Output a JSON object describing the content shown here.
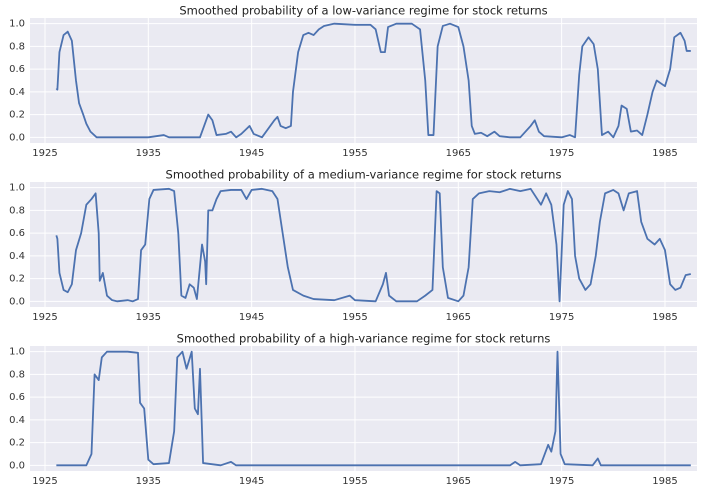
{
  "chart_data": [
    {
      "type": "line",
      "title": "Smoothed probability of a low-variance regime for stock returns",
      "color": "#4c72b0",
      "grid": true,
      "xlim": [
        1923.55,
        1988.1
      ],
      "xticks": [
        1925,
        1935,
        1945,
        1955,
        1965,
        1975,
        1985
      ],
      "ylim": [
        -0.05,
        1.05
      ],
      "yticks": [
        {
          "value": 0,
          "label": "0.0"
        },
        {
          "value": 0.2,
          "label": "0.2"
        },
        {
          "value": 0.4,
          "label": "0.4"
        },
        {
          "value": 0.6,
          "label": "0.6"
        },
        {
          "value": 0.8,
          "label": "0.8"
        },
        {
          "value": 1,
          "label": "1.0"
        }
      ],
      "x": [
        1926.1,
        1926.2,
        1926.4,
        1926.8,
        1927.2,
        1927.6,
        1928.0,
        1928.3,
        1928.7,
        1929.0,
        1929.4,
        1930,
        1935,
        1936.5,
        1937,
        1940,
        1940.8,
        1941.2,
        1941.6,
        1942.5,
        1943,
        1943.5,
        1944,
        1944.8,
        1945.2,
        1946,
        1946.8,
        1947.2,
        1947.5,
        1947.8,
        1948.3,
        1948.8,
        1949.0,
        1949.5,
        1950,
        1950.5,
        1951,
        1951.5,
        1952,
        1953,
        1955,
        1956.5,
        1957,
        1957.5,
        1957.9,
        1958.2,
        1959,
        1960.5,
        1961.3,
        1961.8,
        1962.1,
        1962.6,
        1963,
        1963.5,
        1964.2,
        1965,
        1965.5,
        1966.0,
        1966.3,
        1966.6,
        1967.2,
        1967.8,
        1968.5,
        1969,
        1970,
        1971,
        1972,
        1972.4,
        1972.8,
        1973.3,
        1975,
        1975.8,
        1976.3,
        1976.7,
        1977,
        1977.6,
        1978.1,
        1978.5,
        1978.9,
        1979.5,
        1980,
        1980.5,
        1980.8,
        1981.3,
        1981.7,
        1982.3,
        1982.8,
        1983.3,
        1983.8,
        1984.2,
        1985,
        1985.5,
        1985.9,
        1986.5,
        1986.9,
        1987.1,
        1987.5
      ],
      "values": [
        0.43,
        0.42,
        0.75,
        0.9,
        0.93,
        0.85,
        0.5,
        0.3,
        0.2,
        0.12,
        0.05,
        0.0,
        0.0,
        0.02,
        0.0,
        0.0,
        0.2,
        0.15,
        0.02,
        0.03,
        0.05,
        0.0,
        0.03,
        0.1,
        0.03,
        0.0,
        0.1,
        0.15,
        0.18,
        0.1,
        0.08,
        0.1,
        0.4,
        0.75,
        0.9,
        0.92,
        0.9,
        0.95,
        0.98,
        1.0,
        0.99,
        0.99,
        0.95,
        0.75,
        0.75,
        0.97,
        1.0,
        1.0,
        0.95,
        0.5,
        0.02,
        0.02,
        0.8,
        0.98,
        1.0,
        0.97,
        0.8,
        0.5,
        0.1,
        0.03,
        0.04,
        0.01,
        0.05,
        0.01,
        0.0,
        0.0,
        0.1,
        0.15,
        0.05,
        0.01,
        0.0,
        0.02,
        0.0,
        0.55,
        0.8,
        0.88,
        0.82,
        0.6,
        0.02,
        0.05,
        0.0,
        0.1,
        0.28,
        0.25,
        0.05,
        0.06,
        0.02,
        0.2,
        0.4,
        0.5,
        0.45,
        0.6,
        0.88,
        0.92,
        0.85,
        0.76,
        0.76
      ]
    },
    {
      "type": "line",
      "title": "Smoothed probability of a medium-variance regime for stock returns",
      "color": "#4c72b0",
      "grid": true,
      "xlim": [
        1923.55,
        1988.1
      ],
      "xticks": [
        1925,
        1935,
        1945,
        1955,
        1965,
        1975,
        1985
      ],
      "ylim": [
        -0.05,
        1.05
      ],
      "yticks": [
        {
          "value": 0,
          "label": "0.0"
        },
        {
          "value": 0.2,
          "label": "0.2"
        },
        {
          "value": 0.4,
          "label": "0.4"
        },
        {
          "value": 0.6,
          "label": "0.6"
        },
        {
          "value": 0.8,
          "label": "0.8"
        },
        {
          "value": 1,
          "label": "1.0"
        }
      ],
      "x": [
        1926.1,
        1926.2,
        1926.4,
        1926.8,
        1927.2,
        1927.6,
        1928,
        1928.5,
        1929,
        1929.5,
        1929.9,
        1930.2,
        1930.3,
        1930.6,
        1931,
        1931.5,
        1932,
        1933,
        1933.5,
        1934,
        1934.3,
        1934.7,
        1935.1,
        1935.5,
        1937,
        1937.5,
        1937.9,
        1938.2,
        1938.6,
        1939,
        1939.4,
        1939.7,
        1940.2,
        1940.5,
        1940.6,
        1940.8,
        1941.2,
        1941.6,
        1942,
        1943,
        1944,
        1944.5,
        1945,
        1946,
        1947,
        1947.5,
        1948,
        1948.5,
        1949,
        1950,
        1951,
        1953,
        1954.5,
        1955,
        1957,
        1957.7,
        1958,
        1958.3,
        1959,
        1961,
        1961.8,
        1962.5,
        1962.9,
        1963.2,
        1963.5,
        1964,
        1965,
        1965.5,
        1966,
        1966.4,
        1967,
        1968,
        1969,
        1970,
        1971,
        1972,
        1973,
        1973.5,
        1974,
        1974.5,
        1974.8,
        1975.2,
        1975.6,
        1976,
        1976.3,
        1976.7,
        1977.3,
        1977.8,
        1978.3,
        1978.7,
        1979.2,
        1980,
        1980.5,
        1981,
        1981.5,
        1982.3,
        1982.7,
        1983.3,
        1984,
        1984.5,
        1985,
        1985.5,
        1986,
        1986.5,
        1987,
        1987.5
      ],
      "values": [
        0.58,
        0.55,
        0.25,
        0.1,
        0.08,
        0.15,
        0.45,
        0.6,
        0.85,
        0.9,
        0.95,
        0.6,
        0.18,
        0.25,
        0.05,
        0.01,
        0.0,
        0.01,
        0.0,
        0.02,
        0.45,
        0.5,
        0.9,
        0.98,
        0.99,
        0.97,
        0.6,
        0.05,
        0.03,
        0.15,
        0.12,
        0.02,
        0.5,
        0.35,
        0.15,
        0.8,
        0.8,
        0.9,
        0.97,
        0.98,
        0.98,
        0.9,
        0.98,
        0.99,
        0.97,
        0.9,
        0.6,
        0.3,
        0.1,
        0.05,
        0.02,
        0.01,
        0.05,
        0.01,
        0.0,
        0.15,
        0.25,
        0.05,
        0.0,
        0.0,
        0.05,
        0.1,
        0.97,
        0.95,
        0.3,
        0.03,
        0.0,
        0.05,
        0.3,
        0.9,
        0.95,
        0.97,
        0.96,
        0.99,
        0.97,
        0.99,
        0.85,
        0.95,
        0.85,
        0.5,
        0.0,
        0.85,
        0.97,
        0.9,
        0.4,
        0.2,
        0.1,
        0.15,
        0.4,
        0.7,
        0.95,
        0.98,
        0.95,
        0.8,
        0.95,
        0.97,
        0.7,
        0.55,
        0.5,
        0.55,
        0.45,
        0.15,
        0.1,
        0.12,
        0.23,
        0.24
      ]
    },
    {
      "type": "line",
      "title": "Smoothed probability of a high-variance regime for stock returns",
      "color": "#4c72b0",
      "grid": true,
      "xlim": [
        1923.55,
        1988.1
      ],
      "xticks": [
        1925,
        1935,
        1945,
        1955,
        1965,
        1975,
        1985
      ],
      "ylim": [
        -0.05,
        1.05
      ],
      "yticks": [
        {
          "value": 0,
          "label": "0.0"
        },
        {
          "value": 0.2,
          "label": "0.2"
        },
        {
          "value": 0.4,
          "label": "0.4"
        },
        {
          "value": 0.6,
          "label": "0.6"
        },
        {
          "value": 0.8,
          "label": "0.8"
        },
        {
          "value": 1,
          "label": "1.0"
        }
      ],
      "x": [
        1926.1,
        1929,
        1929.5,
        1929.8,
        1930.2,
        1930.5,
        1931,
        1933,
        1934,
        1934.2,
        1934.6,
        1935,
        1935.5,
        1937,
        1937.5,
        1937.8,
        1938.3,
        1938.7,
        1939.2,
        1939.5,
        1939.8,
        1940.0,
        1940.3,
        1942,
        1943,
        1943.5,
        1970,
        1970.5,
        1971,
        1973,
        1973.7,
        1974,
        1974.4,
        1974.6,
        1974.9,
        1975.3,
        1978,
        1978.5,
        1978.8,
        1987.5
      ],
      "values": [
        0.0,
        0.0,
        0.1,
        0.8,
        0.75,
        0.95,
        1.0,
        1.0,
        0.99,
        0.55,
        0.5,
        0.05,
        0.01,
        0.02,
        0.3,
        0.95,
        1.0,
        0.85,
        1.0,
        0.5,
        0.45,
        0.85,
        0.02,
        0.0,
        0.03,
        0.0,
        0.0,
        0.03,
        0.0,
        0.01,
        0.18,
        0.12,
        0.3,
        1.0,
        0.1,
        0.01,
        0.0,
        0.06,
        0.0,
        0.0
      ]
    }
  ]
}
